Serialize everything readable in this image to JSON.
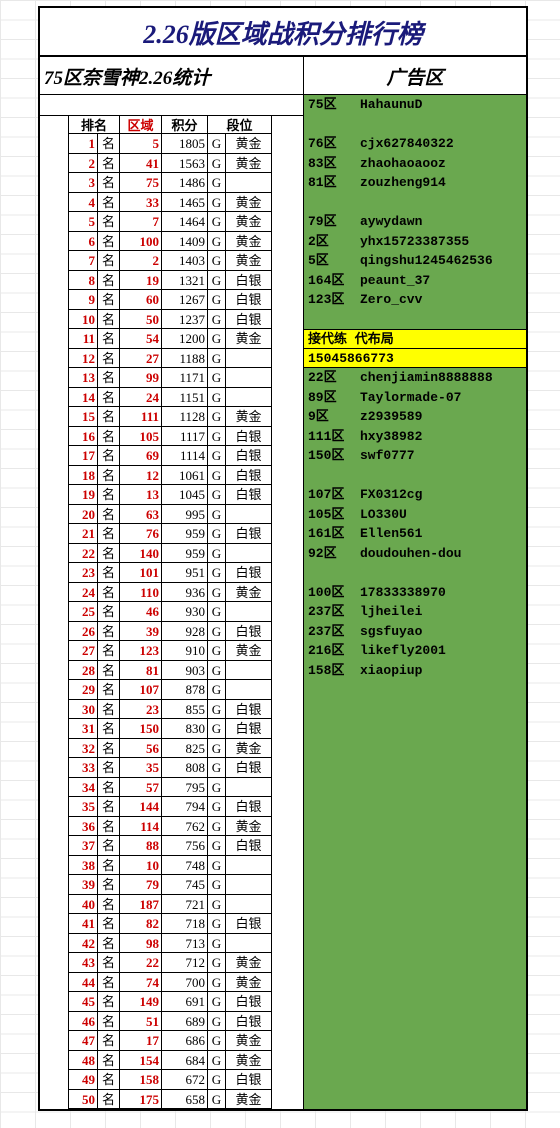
{
  "title": "2.26版区域战积分排行榜",
  "subtitle_left": "75区奈雪神2.26统计",
  "subtitle_right": "广告区",
  "headers": {
    "rank": "排名",
    "area": "区域",
    "score": "积分",
    "tier": "段位"
  },
  "ming": "名",
  "g": "G",
  "rows": [
    {
      "r": 1,
      "a": 5,
      "s": 1805,
      "t": "黄金"
    },
    {
      "r": 2,
      "a": 41,
      "s": 1563,
      "t": "黄金"
    },
    {
      "r": 3,
      "a": 75,
      "s": 1486,
      "t": ""
    },
    {
      "r": 4,
      "a": 33,
      "s": 1465,
      "t": "黄金"
    },
    {
      "r": 5,
      "a": 7,
      "s": 1464,
      "t": "黄金"
    },
    {
      "r": 6,
      "a": 100,
      "s": 1409,
      "t": "黄金"
    },
    {
      "r": 7,
      "a": 2,
      "s": 1403,
      "t": "黄金"
    },
    {
      "r": 8,
      "a": 19,
      "s": 1321,
      "t": "白银"
    },
    {
      "r": 9,
      "a": 60,
      "s": 1267,
      "t": "白银"
    },
    {
      "r": 10,
      "a": 50,
      "s": 1237,
      "t": "白银"
    },
    {
      "r": 11,
      "a": 54,
      "s": 1200,
      "t": "黄金"
    },
    {
      "r": 12,
      "a": 27,
      "s": 1188,
      "t": ""
    },
    {
      "r": 13,
      "a": 99,
      "s": 1171,
      "t": ""
    },
    {
      "r": 14,
      "a": 24,
      "s": 1151,
      "t": ""
    },
    {
      "r": 15,
      "a": 111,
      "s": 1128,
      "t": "黄金"
    },
    {
      "r": 16,
      "a": 105,
      "s": 1117,
      "t": "白银"
    },
    {
      "r": 17,
      "a": 69,
      "s": 1114,
      "t": "白银"
    },
    {
      "r": 18,
      "a": 12,
      "s": 1061,
      "t": "白银"
    },
    {
      "r": 19,
      "a": 13,
      "s": 1045,
      "t": "白银"
    },
    {
      "r": 20,
      "a": 63,
      "s": 995,
      "t": ""
    },
    {
      "r": 21,
      "a": 76,
      "s": 959,
      "t": "白银"
    },
    {
      "r": 22,
      "a": 140,
      "s": 959,
      "t": ""
    },
    {
      "r": 23,
      "a": 101,
      "s": 951,
      "t": "白银"
    },
    {
      "r": 24,
      "a": 110,
      "s": 936,
      "t": "黄金"
    },
    {
      "r": 25,
      "a": 46,
      "s": 930,
      "t": ""
    },
    {
      "r": 26,
      "a": 39,
      "s": 928,
      "t": "白银"
    },
    {
      "r": 27,
      "a": 123,
      "s": 910,
      "t": "黄金"
    },
    {
      "r": 28,
      "a": 81,
      "s": 903,
      "t": ""
    },
    {
      "r": 29,
      "a": 107,
      "s": 878,
      "t": ""
    },
    {
      "r": 30,
      "a": 23,
      "s": 855,
      "t": "白银"
    },
    {
      "r": 31,
      "a": 150,
      "s": 830,
      "t": "白银"
    },
    {
      "r": 32,
      "a": 56,
      "s": 825,
      "t": "黄金"
    },
    {
      "r": 33,
      "a": 35,
      "s": 808,
      "t": "白银"
    },
    {
      "r": 34,
      "a": 57,
      "s": 795,
      "t": ""
    },
    {
      "r": 35,
      "a": 144,
      "s": 794,
      "t": "白银"
    },
    {
      "r": 36,
      "a": 114,
      "s": 762,
      "t": "黄金"
    },
    {
      "r": 37,
      "a": 88,
      "s": 756,
      "t": "白银"
    },
    {
      "r": 38,
      "a": 10,
      "s": 748,
      "t": ""
    },
    {
      "r": 39,
      "a": 79,
      "s": 745,
      "t": ""
    },
    {
      "r": 40,
      "a": 187,
      "s": 721,
      "t": ""
    },
    {
      "r": 41,
      "a": 82,
      "s": 718,
      "t": "白银"
    },
    {
      "r": 42,
      "a": 98,
      "s": 713,
      "t": ""
    },
    {
      "r": 43,
      "a": 22,
      "s": 712,
      "t": "黄金"
    },
    {
      "r": 44,
      "a": 74,
      "s": 700,
      "t": "黄金"
    },
    {
      "r": 45,
      "a": 149,
      "s": 691,
      "t": "白银"
    },
    {
      "r": 46,
      "a": 51,
      "s": 689,
      "t": "白银"
    },
    {
      "r": 47,
      "a": 17,
      "s": 686,
      "t": "黄金"
    },
    {
      "r": 48,
      "a": 154,
      "s": 684,
      "t": "黄金"
    },
    {
      "r": 49,
      "a": 158,
      "s": 672,
      "t": "白银"
    },
    {
      "r": 50,
      "a": 175,
      "s": 658,
      "t": "黄金"
    }
  ],
  "ads": [
    {
      "z": "75区",
      "n": "HahaunuD"
    },
    {
      "z": "",
      "n": ""
    },
    {
      "z": "76区",
      "n": "cjx627840322"
    },
    {
      "z": "83区",
      "n": "zhaohaoaooz"
    },
    {
      "z": "81区",
      "n": "zouzheng914"
    },
    {
      "z": "",
      "n": ""
    },
    {
      "z": "79区",
      "n": "aywydawn"
    },
    {
      "z": "2区",
      "n": "yhx15723387355"
    },
    {
      "z": "5区",
      "n": "qingshu1245462536"
    },
    {
      "z": "164区",
      "n": "peaunt_37"
    },
    {
      "z": "123区",
      "n": "Zero_cvv"
    },
    {
      "z": "",
      "n": ""
    }
  ],
  "highlight": {
    "line1": "接代练 代布局",
    "line2": "15045866773"
  },
  "ads2": [
    {
      "z": "22区",
      "n": "chenjiamin8888888"
    },
    {
      "z": "89区",
      "n": "Taylormade-07"
    },
    {
      "z": "9区",
      "n": "z2939589"
    },
    {
      "z": "111区",
      "n": "hxy38982"
    },
    {
      "z": "150区",
      "n": "swf0777"
    },
    {
      "z": "",
      "n": ""
    },
    {
      "z": "107区",
      "n": "FX0312cg"
    },
    {
      "z": "105区",
      "n": "LO330U"
    },
    {
      "z": "161区",
      "n": "Ellen561"
    },
    {
      "z": "92区",
      "n": "doudouhen-dou"
    },
    {
      "z": "",
      "n": ""
    },
    {
      "z": "100区",
      "n": " 17833338970"
    },
    {
      "z": "237区",
      "n": " ljheilei"
    },
    {
      "z": "237区",
      "n": " sgsfuyao"
    },
    {
      "z": "216区",
      "n": " likefly2001"
    },
    {
      "z": "158区",
      "n": " xiaopiup"
    }
  ],
  "colors": {
    "title": "#1a1a7a",
    "red": "#cc0000",
    "ad_bg": "#6aa84f",
    "highlight_bg": "#ffff00"
  }
}
